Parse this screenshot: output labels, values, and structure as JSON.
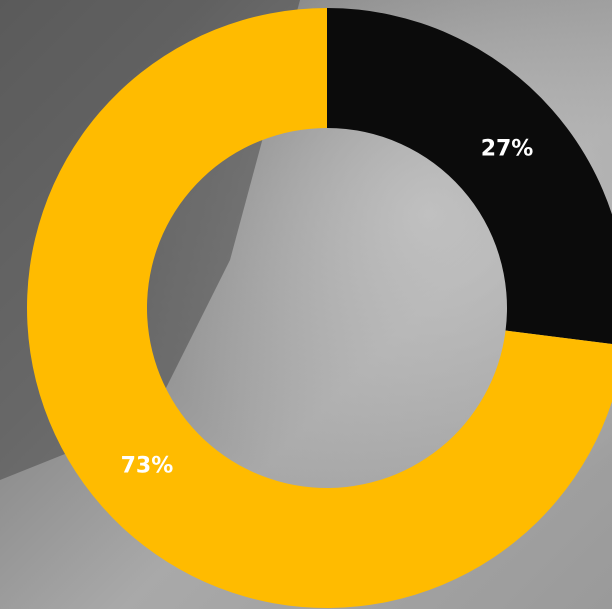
{
  "chart_data": {
    "type": "pie",
    "donut": true,
    "values": [
      27,
      73
    ],
    "value_labels": [
      "27%",
      "73%"
    ],
    "colors": [
      "#0b0b0b",
      "#ffbb00"
    ]
  }
}
